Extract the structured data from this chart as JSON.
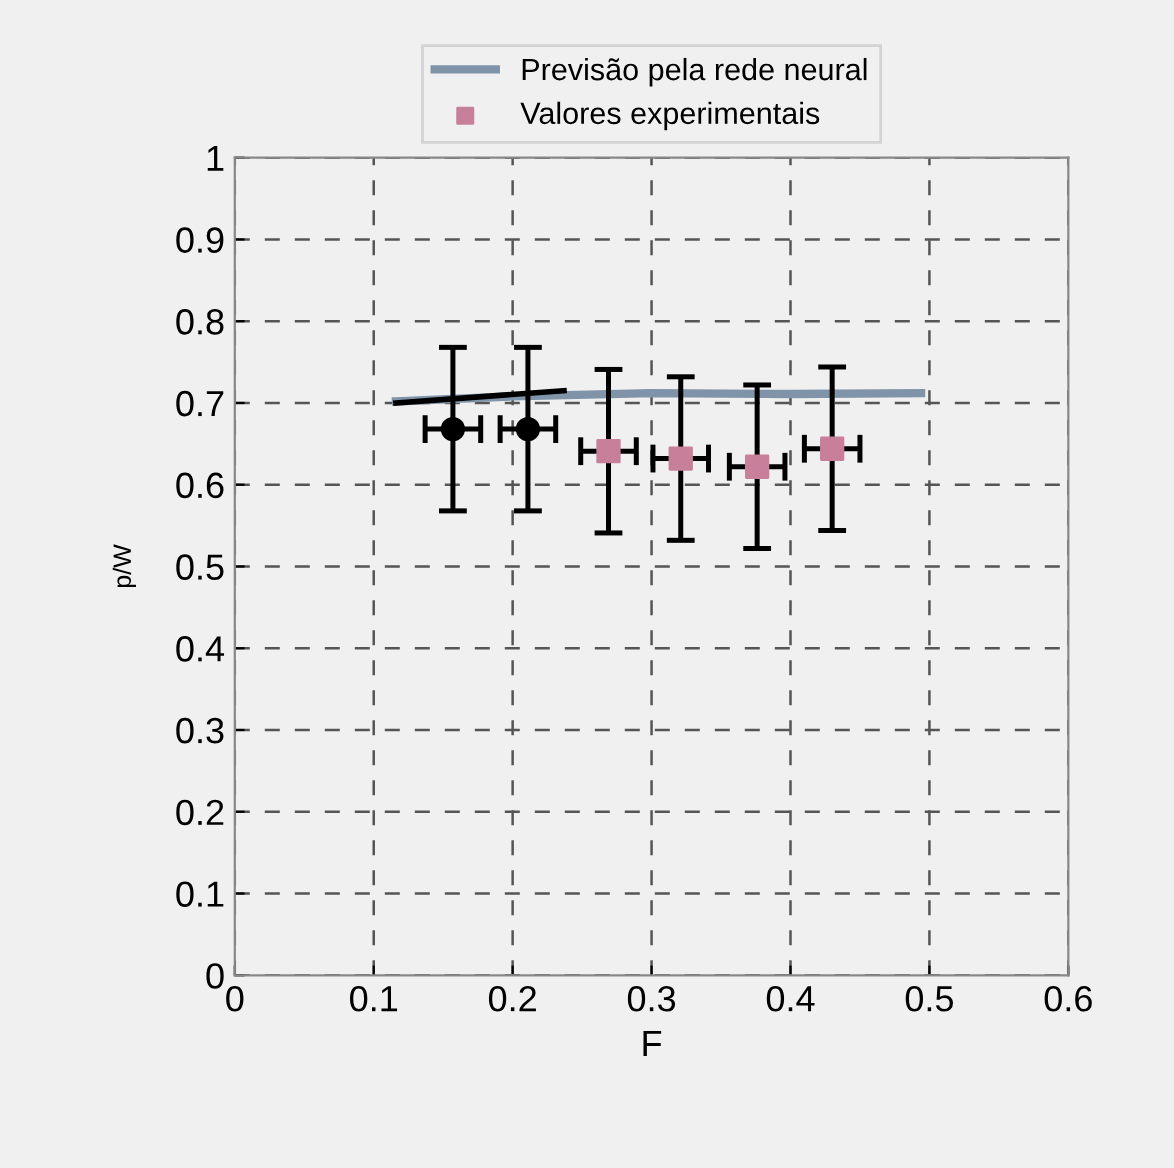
{
  "chart_data": {
    "type": "scatter",
    "xlabel": "F",
    "ylabel": "p/W",
    "xlim": [
      0,
      0.6
    ],
    "xticks": [
      0,
      0.1,
      0.2,
      0.3,
      0.4,
      0.5,
      0.6
    ],
    "ylim": [
      0,
      1
    ],
    "yticks": [
      0,
      0.1,
      0.2,
      0.3,
      0.4,
      0.5,
      0.6,
      0.7,
      0.8,
      0.9,
      1
    ],
    "grid": true,
    "legend": "top",
    "series": [
      {
        "type": "line",
        "name": "Previsão pela rede neural",
        "color": "#7f94a8",
        "x": [
          0.116,
          0.2,
          0.3,
          0.4,
          0.494
        ],
        "values": [
          0.702,
          0.708,
          0.712,
          0.711,
          0.712
        ],
        "marker": "none"
      },
      {
        "type": "line",
        "color": "#000000",
        "x": [
          0.116,
          0.237
        ],
        "values": [
          0.7,
          0.715
        ],
        "marker": "none"
      },
      {
        "color": "#000000",
        "x": [
          0.157,
          0.211
        ],
        "values": [
          0.668,
          0.668
        ],
        "errors": [
          0.1,
          0.1
        ],
        "xerrors": [
          0.02,
          0.02
        ],
        "marker": "circle"
      },
      {
        "name": "Valores experimentais",
        "color": "#c77f9a",
        "x": [
          0.269,
          0.321,
          0.376,
          0.43
        ],
        "values": [
          0.641,
          0.632,
          0.622,
          0.644
        ],
        "errors": [
          0.1,
          0.1,
          0.1,
          0.1
        ],
        "xerrors": [
          0.02,
          0.02,
          0.02,
          0.02
        ],
        "marker": "square"
      }
    ]
  }
}
